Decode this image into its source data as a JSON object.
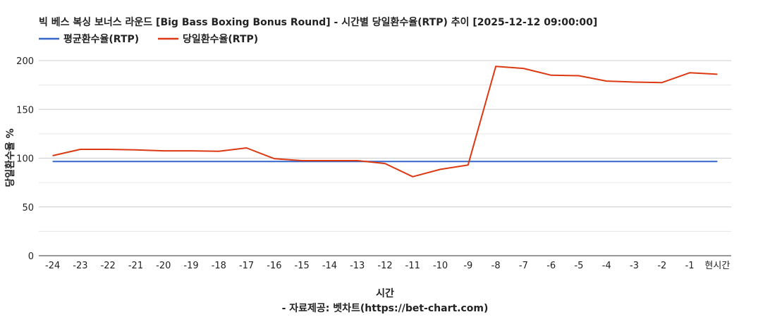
{
  "chart_data": {
    "type": "line",
    "title": "빅 베스 복싱 보너스 라운드 [Big Bass Boxing Bonus Round] - 시간별 당일환수율(RTP) 추이 [2025-12-12 09:00:00]",
    "xlabel": "시간",
    "ylabel": "당일환수율 %",
    "source": "- 자료제공: 벳차트(https://bet-chart.com)",
    "categories": [
      "-24",
      "-23",
      "-22",
      "-21",
      "-20",
      "-19",
      "-18",
      "-17",
      "-16",
      "-15",
      "-14",
      "-13",
      "-12",
      "-11",
      "-10",
      "-9",
      "-8",
      "-7",
      "-6",
      "-5",
      "-4",
      "-3",
      "-2",
      "-1",
      "현시간"
    ],
    "ylim": [
      0,
      200
    ],
    "yticks": [
      0,
      50,
      100,
      150,
      200
    ],
    "grid": true,
    "legend_position": "top-left",
    "series": [
      {
        "name": "평균환수율(RTP)",
        "color": "#3366cc",
        "values": [
          96.5,
          96.5,
          96.5,
          96.5,
          96.5,
          96.5,
          96.5,
          96.5,
          96.5,
          96.5,
          96.5,
          96.5,
          96.5,
          96.5,
          96.5,
          96.5,
          96.5,
          96.5,
          96.5,
          96.5,
          96.5,
          96.5,
          96.5,
          96.5,
          96.5
        ]
      },
      {
        "name": "당일환수율(RTP)",
        "color": "#dc3912",
        "values": [
          102.5,
          109,
          109,
          108.5,
          107.5,
          107.5,
          107,
          110.5,
          99.5,
          97.5,
          97.5,
          97.5,
          94.5,
          81,
          88.5,
          93,
          194,
          192,
          185,
          184.5,
          179,
          178,
          177.5,
          187.5,
          186
        ]
      }
    ]
  }
}
